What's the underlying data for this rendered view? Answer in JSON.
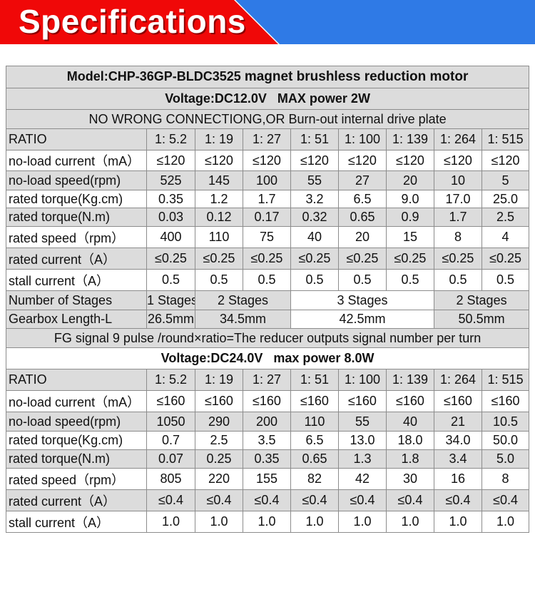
{
  "banner": {
    "title": "Specifications",
    "colors": {
      "red": "#f00808",
      "blue": "#2f7ae6"
    }
  },
  "model": {
    "label": "Model:CHP-36GP-BLDC3525",
    "suffix": "magnet brushless reduction motor"
  },
  "section12": {
    "voltage": "Voltage:DC12.0V",
    "power": "MAX  power 2W",
    "note": "NO WRONG CONNECTIONG,OR Burn-out internal drive plate",
    "rows": [
      {
        "label": "RATIO",
        "values": [
          "1:  5.2",
          "1:  19",
          "1:  27",
          "1:  51",
          "1:  100",
          "1:  139",
          "1:  264",
          "1:  515"
        ]
      },
      {
        "label": "no-load current（mA）",
        "values": [
          "≤120",
          "≤120",
          "≤120",
          "≤120",
          "≤120",
          "≤120",
          "≤120",
          "≤120"
        ]
      },
      {
        "label": "no-load speed(rpm)",
        "values": [
          "525",
          "145",
          "100",
          "55",
          "27",
          "20",
          "10",
          "5"
        ]
      },
      {
        "label": "rated torque(Kg.cm)",
        "values": [
          "0.35",
          "1.2",
          "1.7",
          "3.2",
          "6.5",
          "9.0",
          "17.0",
          "25.0"
        ]
      },
      {
        "label": "rated torque(N.m)",
        "values": [
          "0.03",
          "0.12",
          "0.17",
          "0.32",
          "0.65",
          "0.9",
          "1.7",
          "2.5"
        ]
      },
      {
        "label": "rated speed（rpm）",
        "values": [
          "400",
          "110",
          "75",
          "40",
          "20",
          "15",
          "8",
          "4"
        ]
      },
      {
        "label": "rated current（A）",
        "values": [
          "≤0.25",
          "≤0.25",
          "≤0.25",
          "≤0.25",
          "≤0.25",
          "≤0.25",
          "≤0.25",
          "≤0.25"
        ]
      },
      {
        "label": "stall current（A）",
        "values": [
          "0.5",
          "0.5",
          "0.5",
          "0.5",
          "0.5",
          "0.5",
          "0.5",
          "0.5"
        ]
      }
    ],
    "stages_label": "Number of Stages",
    "stages": [
      "1 Stages",
      "2 Stages",
      "3 Stages",
      "2 Stages"
    ],
    "gearbox_label": "Gearbox Length-L",
    "gearbox": [
      "26.5mm",
      "34.5mm",
      "42.5mm",
      "50.5mm"
    ],
    "fg_note": "FG signal 9 pulse /round×ratio=The reducer outputs signal number per turn"
  },
  "section24": {
    "voltage": "Voltage:DC24.0V",
    "power": "max power  8.0W",
    "rows": [
      {
        "label": "RATIO",
        "values": [
          "1:  5.2",
          "1:  19",
          "1:  27",
          "1:  51",
          "1:  100",
          "1:  139",
          "1:  264",
          "1:  515"
        ]
      },
      {
        "label": "no-load current（mA）",
        "values": [
          "≤160",
          "≤160",
          "≤160",
          "≤160",
          "≤160",
          "≤160",
          "≤160",
          "≤160"
        ]
      },
      {
        "label": "no-load speed(rpm)",
        "values": [
          "1050",
          "290",
          "200",
          "110",
          "55",
          "40",
          "21",
          "10.5"
        ]
      },
      {
        "label": "rated torque(Kg.cm)",
        "values": [
          "0.7",
          "2.5",
          "3.5",
          "6.5",
          "13.0",
          "18.0",
          "34.0",
          "50.0"
        ]
      },
      {
        "label": "rated torque(N.m)",
        "values": [
          "0.07",
          "0.25",
          "0.35",
          "0.65",
          "1.3",
          "1.8",
          "3.4",
          "5.0"
        ]
      },
      {
        "label": "rated speed（rpm）",
        "values": [
          "805",
          "220",
          "155",
          "82",
          "42",
          "30",
          "16",
          "8"
        ]
      },
      {
        "label": "rated current（A）",
        "values": [
          "≤0.4",
          "≤0.4",
          "≤0.4",
          "≤0.4",
          "≤0.4",
          "≤0.4",
          "≤0.4",
          "≤0.4"
        ]
      },
      {
        "label": "stall current（A）",
        "values": [
          "1.0",
          "1.0",
          "1.0",
          "1.0",
          "1.0",
          "1.0",
          "1.0",
          "1.0"
        ]
      }
    ]
  }
}
